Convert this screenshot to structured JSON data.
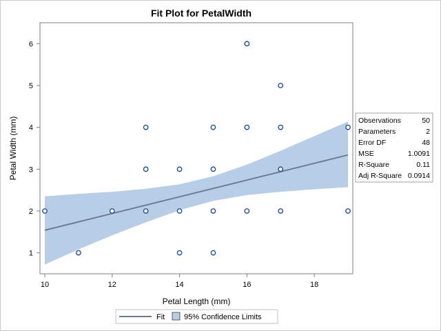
{
  "chart_data": {
    "type": "scatter",
    "title": "Fit Plot for PetalWidth",
    "xlabel": "Petal Length (mm)",
    "ylabel": "Petal Width (mm)",
    "xlim": [
      10,
      19
    ],
    "ylim": [
      0.5,
      6.5
    ],
    "x_ticks": [
      10,
      12,
      14,
      16,
      18
    ],
    "y_ticks": [
      1,
      2,
      3,
      4,
      5,
      6
    ],
    "grid": false,
    "points": [
      {
        "x": 10,
        "y": 2
      },
      {
        "x": 11,
        "y": 1
      },
      {
        "x": 12,
        "y": 2
      },
      {
        "x": 13,
        "y": 2
      },
      {
        "x": 13,
        "y": 3
      },
      {
        "x": 13,
        "y": 4
      },
      {
        "x": 14,
        "y": 1
      },
      {
        "x": 14,
        "y": 2
      },
      {
        "x": 14,
        "y": 3
      },
      {
        "x": 15,
        "y": 1
      },
      {
        "x": 15,
        "y": 2
      },
      {
        "x": 15,
        "y": 3
      },
      {
        "x": 15,
        "y": 4
      },
      {
        "x": 16,
        "y": 2
      },
      {
        "x": 16,
        "y": 4
      },
      {
        "x": 16,
        "y": 6
      },
      {
        "x": 17,
        "y": 2
      },
      {
        "x": 17,
        "y": 3
      },
      {
        "x": 17,
        "y": 4
      },
      {
        "x": 17,
        "y": 5
      },
      {
        "x": 19,
        "y": 2
      },
      {
        "x": 19,
        "y": 4
      }
    ],
    "fit_line": {
      "x": [
        10,
        19
      ],
      "y": [
        1.54,
        3.34
      ]
    },
    "confidence_band": {
      "x": [
        10,
        11,
        12,
        13,
        14,
        15,
        16,
        17,
        18,
        19
      ],
      "lower": [
        0.72,
        1.08,
        1.42,
        1.73,
        2.02,
        2.24,
        2.38,
        2.46,
        2.52,
        2.57
      ],
      "upper": [
        2.35,
        2.41,
        2.46,
        2.53,
        2.64,
        2.83,
        3.11,
        3.44,
        3.79,
        4.14
      ]
    },
    "legend": {
      "placement": "bottom",
      "items": [
        {
          "label": "Fit",
          "kind": "line"
        },
        {
          "label": "95% Confidence Limits",
          "kind": "band"
        }
      ]
    },
    "stats_table": [
      {
        "label": "Observations",
        "value": "50"
      },
      {
        "label": "Parameters",
        "value": "2"
      },
      {
        "label": "Error DF",
        "value": "48"
      },
      {
        "label": "MSE",
        "value": "1.0091"
      },
      {
        "label": "R-Square",
        "value": "0.11"
      },
      {
        "label": "Adj R-Square",
        "value": "0.0914"
      }
    ],
    "colors": {
      "band": "#b8cde6",
      "band_edge": "#9fb6d6",
      "fit_line": "#6c7a96",
      "marker_edge": "#1f4f9b",
      "axis": "#7f7f7f"
    }
  }
}
